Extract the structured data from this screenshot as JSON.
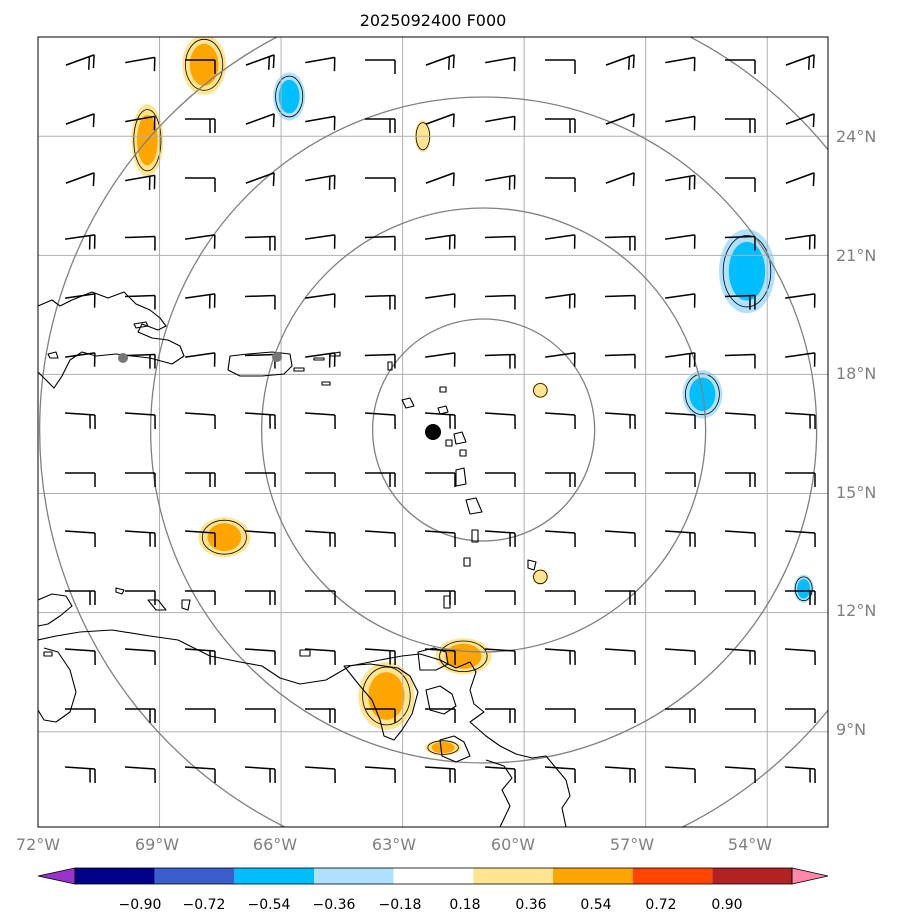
{
  "title": "2025092400 F000",
  "map": {
    "lon_range": [
      -72,
      -52.5
    ],
    "lat_range": [
      6.6,
      26.5
    ],
    "lon_ticks": [
      -72,
      -69,
      -66,
      -63,
      -60,
      -57,
      -54
    ],
    "lat_ticks": [
      9,
      12,
      15,
      18,
      21,
      24
    ],
    "lon_tick_labels": [
      "72°W",
      "69°W",
      "66°W",
      "63°W",
      "60°W",
      "57°W",
      "54°W"
    ],
    "lat_tick_labels": [
      "9°N",
      "12°N",
      "15°N",
      "18°N",
      "21°N",
      "24°N"
    ],
    "center": {
      "lon": -61.0,
      "lat": 16.6
    },
    "range_rings_count": 4,
    "grid": true
  },
  "colorbar": {
    "levels": [
      "−0.90",
      "−0.72",
      "−0.54",
      "−0.36",
      "−0.18",
      "0.18",
      "0.36",
      "0.54",
      "0.72",
      "0.90"
    ],
    "colors": [
      "#9933cc",
      "#000088",
      "#3a5fcd",
      "#00bfff",
      "#b0e2ff",
      "#ffffff",
      "#ffe58f",
      "#ffa500",
      "#ff4500",
      "#b22222",
      "#ff88aa"
    ]
  },
  "shaded_features": [
    {
      "kind": "positive",
      "lon": -67.9,
      "lat": 25.8
    },
    {
      "kind": "positive",
      "lon": -69.3,
      "lat": 23.9
    },
    {
      "kind": "negative",
      "lon": -65.8,
      "lat": 25.0
    },
    {
      "kind": "positive",
      "lon": -62.5,
      "lat": 24.0
    },
    {
      "kind": "negative",
      "lon": -54.5,
      "lat": 20.6
    },
    {
      "kind": "negative",
      "lon": -55.6,
      "lat": 17.5
    },
    {
      "kind": "positive",
      "lon": -59.6,
      "lat": 17.6
    },
    {
      "kind": "positive",
      "lon": -67.4,
      "lat": 13.9
    },
    {
      "kind": "positive",
      "lon": -59.6,
      "lat": 12.9
    },
    {
      "kind": "negative",
      "lon": -53.1,
      "lat": 12.6
    },
    {
      "kind": "positive",
      "lon": -61.5,
      "lat": 10.9
    },
    {
      "kind": "positive",
      "lon": -63.4,
      "lat": 9.9
    },
    {
      "kind": "positive",
      "lon": -62.0,
      "lat": 8.6
    }
  ]
}
